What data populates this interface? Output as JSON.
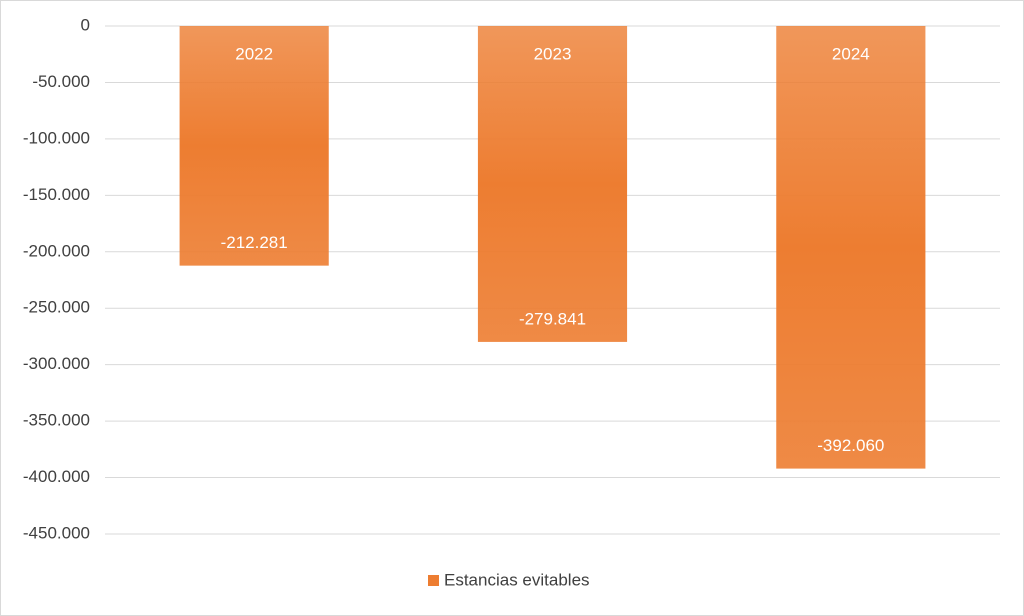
{
  "chart_data": {
    "type": "bar",
    "categories": [
      "2022",
      "2023",
      "2024"
    ],
    "series": [
      {
        "name": "Estancias evitables",
        "color": "#ed7d31",
        "values": [
          -212281,
          -279841,
          -392060
        ],
        "value_labels": [
          "-212.281",
          "-279.841",
          "-392.060"
        ]
      }
    ],
    "ylim": [
      -450000,
      0
    ],
    "yticks": [
      0,
      {
        "value": -50000,
        "label": "-50.000"
      },
      {
        "value": -100000,
        "label": "-100.000"
      },
      {
        "value": -150000,
        "label": "-150.000"
      },
      {
        "value": -200000,
        "label": "-200.000"
      },
      {
        "value": -250000,
        "label": "-250.000"
      },
      {
        "value": -300000,
        "label": "-300.000"
      },
      {
        "value": -350000,
        "label": "-350.000"
      },
      {
        "value": -400000,
        "label": "-400.000"
      },
      {
        "value": -450000,
        "label": "-450.000"
      }
    ],
    "grid": true,
    "legend": "bottom"
  }
}
